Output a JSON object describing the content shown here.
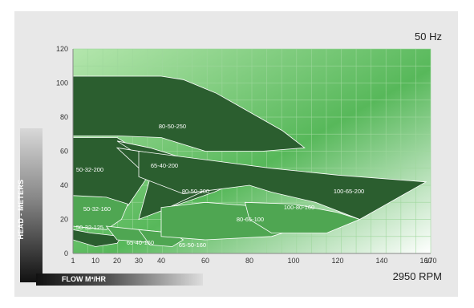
{
  "frequency": "50 Hz",
  "speed": "2950 RPM",
  "chart_data": {
    "type": "area",
    "xlabel": "FLOW M³/HR",
    "ylabel": "HEAD - METERS",
    "x_ticks": [
      1,
      10,
      20,
      30,
      40,
      60,
      80,
      100,
      120,
      140,
      160,
      170
    ],
    "y_ticks": [
      0,
      20,
      40,
      60,
      80,
      100,
      120
    ],
    "xlim": [
      1,
      170
    ],
    "ylim": [
      0,
      120
    ],
    "grid": true,
    "colors": {
      "dark": "#2b5e2f",
      "light": "#4fa652",
      "grid": "#9ed79c",
      "bg": "#7fd27c"
    },
    "series": [
      {
        "name": "80-50-250",
        "shade": "dark",
        "label_at": [
          41,
          78
        ],
        "points": [
          [
            1,
            104
          ],
          [
            40,
            104
          ],
          [
            50,
            102
          ],
          [
            65,
            94
          ],
          [
            80,
            83
          ],
          [
            95,
            72
          ],
          [
            105,
            62
          ],
          [
            86,
            60
          ],
          [
            60,
            60
          ],
          [
            40,
            68
          ],
          [
            20,
            69
          ],
          [
            1,
            69
          ]
        ]
      },
      {
        "name": "50-32-200",
        "shade": "dark",
        "points": [
          [
            1,
            68
          ],
          [
            20,
            68
          ],
          [
            30,
            60
          ],
          [
            35,
            47
          ],
          [
            25,
            28
          ],
          [
            15,
            30
          ],
          [
            1,
            34
          ]
        ]
      },
      {
        "name": "65-40-200",
        "shade": "dark",
        "points": [
          [
            20,
            66
          ],
          [
            35,
            62
          ],
          [
            60,
            52
          ],
          [
            80,
            45
          ],
          [
            64,
            36
          ],
          [
            46,
            28
          ],
          [
            38,
            42
          ],
          [
            32,
            56
          ]
        ]
      },
      {
        "name": "80-50-200",
        "shade": "dark",
        "points": [
          [
            20,
            62
          ],
          [
            40,
            58
          ],
          [
            60,
            50
          ],
          [
            80,
            45
          ],
          [
            60,
            37
          ],
          [
            40,
            25
          ],
          [
            30,
            20
          ],
          [
            35,
            44
          ]
        ]
      },
      {
        "name": "100-65-200",
        "shade": "dark",
        "points": [
          [
            30,
            60
          ],
          [
            60,
            55
          ],
          [
            90,
            50
          ],
          [
            120,
            46
          ],
          [
            160,
            42
          ],
          [
            130,
            20
          ],
          [
            110,
            30
          ],
          [
            90,
            36
          ],
          [
            80,
            40
          ],
          [
            50,
            35
          ],
          [
            30,
            45
          ]
        ]
      },
      {
        "name": "50-32-160",
        "shade": "light",
        "points": [
          [
            1,
            34
          ],
          [
            15,
            33
          ],
          [
            25,
            29
          ],
          [
            22,
            20
          ],
          [
            15,
            14
          ],
          [
            1,
            16
          ]
        ]
      },
      {
        "name": "50-32-125",
        "shade": "dark",
        "points": [
          [
            1,
            14
          ],
          [
            8,
            12
          ],
          [
            15,
            11
          ],
          [
            22,
            10
          ],
          [
            20,
            6
          ],
          [
            10,
            4
          ],
          [
            1,
            8
          ]
        ]
      },
      {
        "name": "65-40-160",
        "shade": "light",
        "points": [
          [
            15,
            16
          ],
          [
            30,
            14
          ],
          [
            45,
            12
          ],
          [
            40,
            6
          ],
          [
            30,
            7
          ],
          [
            20,
            8
          ]
        ]
      },
      {
        "name": "65-50-160",
        "shade": "light",
        "points": [
          [
            30,
            14
          ],
          [
            45,
            12
          ],
          [
            50,
            8
          ],
          [
            45,
            4
          ],
          [
            35,
            5
          ]
        ]
      },
      {
        "name": "80-65-100",
        "shade": "light",
        "points": [
          [
            40,
            27
          ],
          [
            60,
            30
          ],
          [
            80,
            28
          ],
          [
            100,
            25
          ],
          [
            110,
            18
          ],
          [
            90,
            10
          ],
          [
            60,
            8
          ],
          [
            40,
            10
          ]
        ]
      },
      {
        "name": "100-80-160",
        "shade": "light",
        "points": [
          [
            78,
            30
          ],
          [
            100,
            29
          ],
          [
            120,
            24
          ],
          [
            130,
            20
          ],
          [
            115,
            12
          ],
          [
            90,
            12
          ],
          [
            80,
            20
          ]
        ]
      }
    ]
  }
}
